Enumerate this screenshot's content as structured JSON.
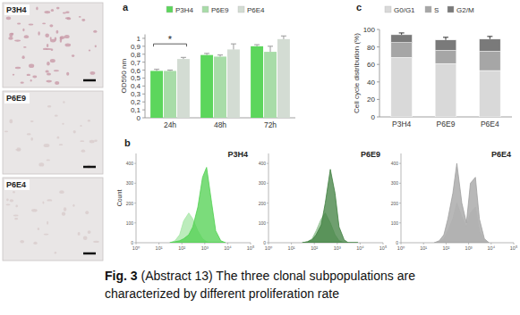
{
  "images": [
    {
      "label": "P3H4"
    },
    {
      "label": "P6E9"
    },
    {
      "label": "P6E4"
    }
  ],
  "caption": {
    "label": "Fig. 3",
    "lines": [
      "(Abstract 13) The three clonal subpopulations are",
      "characterized by different proliferation rate"
    ]
  },
  "chart_data": [
    {
      "type": "bar",
      "title": "a",
      "y_label": "OD590 nm",
      "categories": [
        "24h",
        "48h",
        "72h"
      ],
      "series": [
        {
          "name": "P3H4",
          "color": "#5cd65c",
          "values": [
            0.59,
            0.79,
            0.9
          ],
          "errors": [
            0.02,
            0.02,
            0.02
          ]
        },
        {
          "name": "P6E9",
          "color": "#a8dca8",
          "values": [
            0.59,
            0.77,
            0.83
          ],
          "errors": [
            0.01,
            0.02,
            0.07
          ]
        },
        {
          "name": "P6E4",
          "color": "#d3dcd3",
          "values": [
            0.74,
            0.86,
            0.99
          ],
          "errors": [
            0.02,
            0.07,
            0.04
          ]
        }
      ],
      "ylim": [
        0,
        1.05
      ],
      "yticks": [
        0,
        {
          "value": 0.1,
          "label": "0,1"
        },
        {
          "value": 0.2,
          "label": "0,2"
        },
        {
          "value": 0.3,
          "label": "0,3"
        },
        {
          "value": 0.4,
          "label": "0,4"
        },
        {
          "value": 0.5,
          "label": "0,5"
        },
        {
          "value": 0.6,
          "label": "0,6"
        },
        {
          "value": 0.7,
          "label": "0,7"
        },
        {
          "value": 0.8,
          "label": "0,8"
        },
        {
          "value": 0.9,
          "label": "0,9"
        },
        1
      ],
      "legend": "top",
      "annotations": [
        {
          "text": "*",
          "category": "24h",
          "y": 0.93
        }
      ]
    },
    {
      "type": "area",
      "title": "P3H4",
      "y_label": "Count",
      "log": "x",
      "annotations": [
        {
          "text": "b"
        }
      ],
      "x": [
        30,
        50,
        80,
        120,
        200,
        300,
        500,
        800,
        1200,
        2000,
        3000,
        5000,
        8000
      ],
      "series": [
        {
          "color": "#a6e6a6",
          "values": [
            0,
            10,
            40,
            110,
            150,
            120,
            60,
            20,
            5,
            0,
            0,
            0,
            0
          ]
        },
        {
          "color": "#4fd04f",
          "values": [
            0,
            5,
            10,
            20,
            40,
            80,
            180,
            330,
            380,
            200,
            60,
            10,
            0
          ]
        }
      ],
      "xlim": [
        1,
        100000
      ],
      "xticks": [
        {
          "value": 1,
          "label": "10⁰"
        },
        {
          "value": 10,
          "label": "10¹"
        },
        {
          "value": 100,
          "label": "10²"
        },
        {
          "value": 1000,
          "label": "10³"
        },
        {
          "value": 10000,
          "label": "10⁴"
        },
        {
          "value": 100000,
          "label": "10⁵"
        }
      ],
      "ylim": [
        0,
        450
      ],
      "yticks": [
        0,
        100,
        200,
        300,
        400
      ]
    },
    {
      "type": "area",
      "title": "P6E9",
      "log": "x",
      "x": [
        30,
        50,
        80,
        120,
        200,
        300,
        500,
        800,
        1200,
        2000,
        3000,
        5000,
        8000
      ],
      "series": [
        {
          "color": "#8fbf8f",
          "values": [
            0,
            5,
            20,
            60,
            120,
            150,
            100,
            40,
            10,
            0,
            0,
            0,
            0
          ]
        },
        {
          "color": "#3f7f3f",
          "values": [
            0,
            5,
            15,
            40,
            90,
            200,
            370,
            250,
            80,
            15,
            0,
            0,
            0
          ]
        }
      ],
      "xlim": [
        1,
        100000
      ],
      "xticks": [
        {
          "value": 1,
          "label": "10⁰"
        },
        {
          "value": 10,
          "label": "10¹"
        },
        {
          "value": 100,
          "label": "10²"
        },
        {
          "value": 1000,
          "label": "10³"
        },
        {
          "value": 10000,
          "label": "10⁴"
        },
        {
          "value": 100000,
          "label": "10⁵"
        }
      ],
      "ylim": [
        0,
        450
      ],
      "yticks": [
        0,
        100,
        200,
        300,
        400
      ]
    },
    {
      "type": "area",
      "title": "P6E4",
      "log": "x",
      "x": [
        30,
        50,
        80,
        120,
        200,
        300,
        500,
        800,
        1200,
        2000,
        3000,
        5000,
        8000
      ],
      "series": [
        {
          "color": "#e0e0e0",
          "values": [
            0,
            5,
            20,
            60,
            120,
            200,
            130,
            80,
            150,
            180,
            60,
            10,
            0
          ]
        },
        {
          "color": "#a0a0a0",
          "values": [
            0,
            10,
            40,
            120,
            250,
            400,
            200,
            100,
            300,
            330,
            120,
            20,
            0
          ]
        }
      ],
      "xlim": [
        1,
        100000
      ],
      "xticks": [
        {
          "value": 1,
          "label": "10⁰"
        },
        {
          "value": 10,
          "label": "10¹"
        },
        {
          "value": 100,
          "label": "10²"
        },
        {
          "value": 1000,
          "label": "10³"
        },
        {
          "value": 10000,
          "label": "10⁴"
        },
        {
          "value": 100000,
          "label": "10⁵"
        }
      ],
      "ylim": [
        0,
        450
      ],
      "yticks": [
        0,
        100,
        200,
        300,
        400
      ]
    },
    {
      "type": "bar",
      "stacked": true,
      "title": "c",
      "y_label": "Cell cycle distribution (%)",
      "categories": [
        "P3H4",
        "P6E9",
        "P6E4"
      ],
      "series": [
        {
          "name": "G0/G1",
          "color": "#d9d9d9",
          "values": [
            68,
            61,
            53
          ]
        },
        {
          "name": "S",
          "color": "#a6a6a6",
          "values": [
            17,
            15,
            22
          ]
        },
        {
          "name": "G2/M",
          "color": "#7a7a7a",
          "values": [
            9,
            12,
            14
          ],
          "errors": [
            2,
            3,
            3
          ]
        }
      ],
      "ylim": [
        0,
        100
      ],
      "yticks": [
        0,
        20,
        40,
        60,
        80,
        100
      ],
      "legend": "top"
    }
  ]
}
